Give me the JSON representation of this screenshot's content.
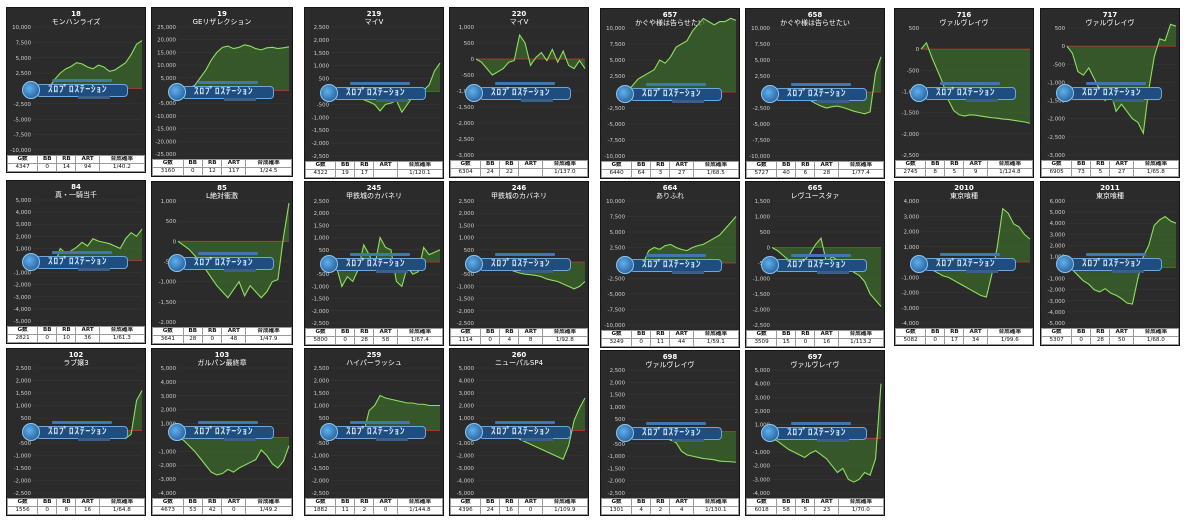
{
  "palette": {
    "panel_bg": "#2b2b2b",
    "line": "#8ee05f",
    "fill": "#3c6b2a",
    "zero_line": "#c0392b",
    "grid": "#3a3a3a",
    "text": "#ffffff"
  },
  "watermark": {
    "text": "ｽﾛﾌﾟﾛｽﾃｰｼｮﾝ",
    "icon": "logo-badge-icon"
  },
  "stat_headers": [
    "G数",
    "BB",
    "RB",
    "ART",
    "合成確率"
  ],
  "panels": [
    {
      "num": "18",
      "name": "モンハンライズ",
      "stats": [
        "4347",
        "0",
        "14",
        "94",
        "1/40.2"
      ]
    },
    {
      "num": "19",
      "name": "GEリザレクション",
      "stats": [
        "3160",
        "0",
        "12",
        "117",
        "1/24.5"
      ]
    },
    {
      "num": "219",
      "name": "マイV",
      "stats": [
        "4322",
        "19",
        "17",
        "",
        "1/120.1"
      ]
    },
    {
      "num": "220",
      "name": "マイV",
      "stats": [
        "6304",
        "24",
        "22",
        "",
        "1/137.0"
      ]
    },
    {
      "num": "657",
      "name": "かぐや様は告らせたい",
      "stats": [
        "6440",
        "64",
        "3",
        "27",
        "1/68.5"
      ]
    },
    {
      "num": "658",
      "name": "かぐや様は告らせたい",
      "stats": [
        "5727",
        "40",
        "6",
        "28",
        "1/77.4"
      ]
    },
    {
      "num": "716",
      "name": "ヴァルヴレイヴ",
      "stats": [
        "2745",
        "8",
        "5",
        "9",
        "1/124.8"
      ]
    },
    {
      "num": "717",
      "name": "ヴァルヴレイヴ",
      "stats": [
        "6905",
        "73",
        "5",
        "27",
        "1/65.8"
      ]
    },
    {
      "num": "84",
      "name": "真・一騎当千",
      "stats": [
        "2821",
        "0",
        "10",
        "36",
        "1/61.3"
      ]
    },
    {
      "num": "85",
      "name": "L絶対衝激",
      "stats": [
        "3641",
        "28",
        "0",
        "48",
        "1/47.9"
      ]
    },
    {
      "num": "245",
      "name": "甲鉄城のカバネリ",
      "stats": [
        "5800",
        "0",
        "28",
        "58",
        "1/67.4"
      ]
    },
    {
      "num": "246",
      "name": "甲鉄城のカバネリ",
      "stats": [
        "1114",
        "0",
        "4",
        "8",
        "1/92.8"
      ]
    },
    {
      "num": "664",
      "name": "ありふれ",
      "stats": [
        "3249",
        "0",
        "11",
        "44",
        "1/59.1"
      ]
    },
    {
      "num": "665",
      "name": "レヴユースタァ",
      "stats": [
        "3509",
        "15",
        "0",
        "16",
        "1/113.2"
      ]
    },
    {
      "num": "2010",
      "name": "東京喰種",
      "stats": [
        "5082",
        "0",
        "17",
        "34",
        "1/99.6"
      ]
    },
    {
      "num": "2011",
      "name": "東京喰種",
      "stats": [
        "5307",
        "0",
        "28",
        "50",
        "1/68.0"
      ]
    },
    {
      "num": "102",
      "name": "ラブ嬢3",
      "stats": [
        "1556",
        "0",
        "8",
        "16",
        "1/64.8"
      ]
    },
    {
      "num": "103",
      "name": "ガルパン最終章",
      "stats": [
        "4673",
        "53",
        "42",
        "0",
        "1/49.2"
      ]
    },
    {
      "num": "259",
      "name": "ハイパーラッシュ",
      "stats": [
        "1882",
        "11",
        "2",
        "0",
        "1/144.8"
      ]
    },
    {
      "num": "260",
      "name": "ニューパルSP4",
      "stats": [
        "4396",
        "24",
        "16",
        "0",
        "1/109.9"
      ]
    },
    {
      "num": "698",
      "name": "ヴァルヴレイヴ",
      "stats": [
        "1301",
        "4",
        "2",
        "4",
        "1/130.1"
      ]
    },
    {
      "num": "697",
      "name": "ヴァルヴレイヴ",
      "stats": [
        "6018",
        "58",
        "5",
        "23",
        "1/70.0"
      ]
    }
  ],
  "chart_data": [
    {
      "type": "area",
      "ylim": [
        -10000,
        10000
      ],
      "yticks": [
        10000,
        7500,
        5000,
        2500,
        0,
        -2500,
        -5000,
        -7500,
        -10000
      ],
      "values": [
        0,
        -300,
        -800,
        200,
        1500,
        2500,
        3200,
        3600,
        4200,
        4000,
        3500,
        3200,
        3800,
        3500,
        2800,
        3000,
        3600,
        4200,
        5500,
        7200,
        7800
      ]
    },
    {
      "type": "area",
      "ylim": [
        -25000,
        25000
      ],
      "yticks": [
        25000,
        20000,
        15000,
        10000,
        5000,
        0,
        -5000,
        -10000,
        -15000,
        -20000,
        -25000
      ],
      "values": [
        0,
        500,
        1000,
        2000,
        5000,
        8000,
        12000,
        15000,
        17000,
        17500,
        16500,
        17000,
        18000,
        17500,
        16500,
        16000,
        16800,
        17000,
        16500,
        16800,
        17200
      ]
    },
    {
      "type": "area",
      "ylim": [
        -2500,
        2500
      ],
      "yticks": [
        2500,
        2000,
        1500,
        1000,
        500,
        0,
        -500,
        -1000,
        -1500,
        -2000,
        -2500
      ],
      "values": [
        0,
        -20,
        -60,
        -120,
        -180,
        -250,
        -320,
        -400,
        -500,
        -750,
        -500,
        -450,
        -350,
        -800,
        -500,
        -200,
        -100,
        50,
        250,
        800,
        1100
      ]
    },
    {
      "type": "area",
      "ylim": [
        -3000,
        1000
      ],
      "yticks": [
        1000,
        500,
        0,
        -500,
        -1000,
        -1500,
        -2000,
        -2500,
        -3000
      ],
      "values": [
        0,
        -100,
        -300,
        -500,
        -400,
        -300,
        -100,
        -50,
        750,
        500,
        -200,
        50,
        200,
        -50,
        300,
        -100,
        250,
        -200,
        -300,
        -50,
        -300
      ]
    },
    {
      "type": "area",
      "ylim": [
        -10000,
        10000
      ],
      "yticks": [
        10000,
        7500,
        5000,
        2500,
        0,
        -2500,
        -5000,
        -7500,
        -10000
      ],
      "values": [
        0,
        1000,
        2000,
        2500,
        3000,
        3500,
        5000,
        4500,
        5500,
        7000,
        7500,
        8000,
        9500,
        10500,
        11500,
        11000,
        10500,
        11000,
        11000,
        11500,
        11200
      ]
    },
    {
      "type": "area",
      "ylim": [
        -10000,
        10000
      ],
      "yticks": [
        10000,
        7500,
        5000,
        2500,
        0,
        -2500,
        -5000,
        -7500,
        -10000
      ],
      "values": [
        0,
        -100,
        -150,
        -250,
        -400,
        -600,
        -900,
        -1300,
        -1800,
        -2200,
        -2500,
        -2300,
        -2200,
        -2400,
        -2700,
        -3000,
        -3200,
        -3400,
        -3100,
        3000,
        5500
      ]
    },
    {
      "type": "area",
      "ylim": [
        -2500,
        500
      ],
      "yticks": [
        500,
        0,
        -500,
        -1000,
        -1500,
        -2000,
        -2500
      ],
      "values": [
        0,
        150,
        -200,
        -500,
        -800,
        -1200,
        -1450,
        -1550,
        -1580,
        -1550,
        -1560,
        -1580,
        -1600,
        -1620,
        -1630,
        -1650,
        -1660,
        -1680,
        -1700,
        -1720,
        -1750
      ]
    },
    {
      "type": "area",
      "ylim": [
        -3000,
        500
      ],
      "yticks": [
        500,
        0,
        -500,
        -1000,
        -1500,
        -2000,
        -2500,
        -3000
      ],
      "values": [
        0,
        -200,
        -700,
        -800,
        -600,
        -900,
        -1200,
        -1500,
        -1250,
        -1800,
        -1600,
        -1800,
        -2000,
        -2100,
        -2400,
        -1200,
        -300,
        200,
        150,
        600,
        550
      ]
    },
    {
      "type": "area",
      "ylim": [
        -5000,
        5000
      ],
      "yticks": [
        5000,
        4000,
        3000,
        2000,
        1000,
        0,
        -1000,
        -2000,
        -3000,
        -4000,
        -5000
      ],
      "values": [
        0,
        -100,
        -200,
        -500,
        -300,
        1000,
        600,
        800,
        1100,
        1500,
        1200,
        1800,
        1600,
        1500,
        1400,
        1200,
        1000,
        1800,
        2300,
        2000,
        2600
      ]
    },
    {
      "type": "area",
      "ylim": [
        -2000,
        1000
      ],
      "yticks": [
        1000,
        500,
        0,
        -500,
        -1000,
        -1500,
        -2000
      ],
      "values": [
        0,
        -100,
        -200,
        -350,
        -500,
        -700,
        -900,
        -1100,
        -1250,
        -1400,
        -1200,
        -1000,
        -1350,
        -1100,
        -1250,
        -1400,
        -1250,
        -1000,
        -950,
        100,
        950
      ]
    },
    {
      "type": "area",
      "ylim": [
        -2500,
        2500
      ],
      "yticks": [
        2500,
        2000,
        1500,
        1000,
        500,
        0,
        -500,
        -1000,
        -1500,
        -2000,
        -2500
      ],
      "values": [
        0,
        -200,
        -1000,
        -600,
        -800,
        -300,
        700,
        300,
        -200,
        1000,
        600,
        500,
        -800,
        -1000,
        -200,
        -500,
        -400,
        600,
        300,
        400,
        500
      ]
    },
    {
      "type": "area",
      "ylim": [
        -2500,
        2500
      ],
      "yticks": [
        2500,
        2000,
        1500,
        1000,
        500,
        0,
        -500,
        -1000,
        -1500,
        -2000,
        -2500
      ],
      "values": [
        0,
        -20,
        -60,
        -120,
        -180,
        -240,
        -300,
        -380,
        -450,
        -500,
        -520,
        -550,
        -600,
        -700,
        -750,
        -800,
        -900,
        -1000,
        -1100,
        -1000,
        -800
      ]
    },
    {
      "type": "area",
      "ylim": [
        -10000,
        10000
      ],
      "yticks": [
        10000,
        7500,
        5000,
        2500,
        0,
        -2500,
        -5000,
        -7500,
        -10000
      ],
      "values": [
        0,
        -200,
        -500,
        0,
        2000,
        2500,
        2200,
        2800,
        3000,
        2500,
        2200,
        2000,
        2500,
        2800,
        3000,
        3500,
        4000,
        4500,
        5500,
        6500,
        7500
      ]
    },
    {
      "type": "area",
      "ylim": [
        -2500,
        1500
      ],
      "yticks": [
        1500,
        1000,
        500,
        0,
        -500,
        -1000,
        -1500,
        -2000,
        -2500
      ],
      "values": [
        0,
        -100,
        -250,
        -400,
        -550,
        -700,
        -400,
        -200,
        100,
        300,
        -500,
        -300,
        -400,
        -600,
        -500,
        -800,
        -900,
        -1100,
        -1500,
        -1700,
        -1900
      ]
    },
    {
      "type": "area",
      "ylim": [
        -4000,
        4000
      ],
      "yticks": [
        4000,
        3000,
        2000,
        1000,
        0,
        -1000,
        -2000,
        -3000,
        -4000
      ],
      "values": [
        0,
        -200,
        -500,
        -700,
        -900,
        -1000,
        -1200,
        -1400,
        -1600,
        -1800,
        -2000,
        -2200,
        -2300,
        -800,
        1000,
        3500,
        3200,
        2500,
        2300,
        1800,
        1500
      ]
    },
    {
      "type": "area",
      "ylim": [
        -5000,
        6000
      ],
      "yticks": [
        6000,
        5000,
        4000,
        3000,
        2000,
        1000,
        0,
        -1000,
        -2000,
        -3000,
        -4000,
        -5000
      ],
      "values": [
        0,
        -200,
        -700,
        -1200,
        -1500,
        -2000,
        -2200,
        -1900,
        -2300,
        -2500,
        -2800,
        -3200,
        -3300,
        -1000,
        1000,
        2000,
        3800,
        4300,
        4600,
        4200,
        4000
      ]
    },
    {
      "type": "area",
      "ylim": [
        -2500,
        2500
      ],
      "yticks": [
        2500,
        2000,
        1500,
        1000,
        500,
        0,
        -500,
        -1000,
        -1500,
        -2000,
        -2500
      ],
      "values": [
        0,
        -10,
        -20,
        -40,
        -60,
        -80,
        -100,
        -120,
        -140,
        -160,
        -180,
        -200,
        -220,
        -240,
        -260,
        -280,
        -300,
        -320,
        -150,
        1200,
        1600
      ]
    },
    {
      "type": "area",
      "ylim": [
        -4000,
        5000
      ],
      "yticks": [
        5000,
        4000,
        3000,
        2000,
        1000,
        0,
        -1000,
        -2000,
        -3000,
        -4000
      ],
      "values": [
        0,
        -200,
        -600,
        -1000,
        -1500,
        -2000,
        -2500,
        -2700,
        -2600,
        -2300,
        -2500,
        -2200,
        -2000,
        -1800,
        -1600,
        -900,
        -1300,
        -1900,
        -2200,
        -1700,
        -600
      ]
    },
    {
      "type": "area",
      "ylim": [
        -2500,
        2500
      ],
      "yticks": [
        2500,
        2000,
        1500,
        1000,
        500,
        0,
        -500,
        -1000,
        -1500,
        -2000,
        -2500
      ],
      "values": [
        0,
        -50,
        -100,
        -200,
        -300,
        -250,
        -100,
        800,
        1000,
        1400,
        1300,
        1250,
        1200,
        1150,
        1100,
        1100,
        1050,
        1050,
        1000,
        1000,
        1000
      ]
    },
    {
      "type": "area",
      "ylim": [
        -5000,
        5000
      ],
      "yticks": [
        5000,
        4000,
        3000,
        2000,
        1000,
        0,
        -1000,
        -2000,
        -3000,
        -4000,
        -5000
      ],
      "values": [
        0,
        -100,
        -300,
        -500,
        -600,
        -400,
        -500,
        -300,
        -700,
        -900,
        -1100,
        -1300,
        -1500,
        -1700,
        -1900,
        -2100,
        -2300,
        -1200,
        800,
        1800,
        2600
      ]
    },
    {
      "type": "area",
      "ylim": [
        -2500,
        2500
      ],
      "yticks": [
        2500,
        2000,
        1500,
        1000,
        500,
        0,
        -500,
        -1000,
        -1500,
        -2000,
        -2500
      ],
      "values": [
        0,
        -20,
        -50,
        -80,
        -120,
        -150,
        -200,
        -280,
        -350,
        -450,
        -800,
        -950,
        -1000,
        -1050,
        -1100,
        -1120,
        -1150,
        -1200,
        -1220,
        -1230,
        -1250
      ]
    },
    {
      "type": "area",
      "ylim": [
        -4000,
        5000
      ],
      "yticks": [
        5000,
        4000,
        3000,
        2000,
        1000,
        0,
        -1000,
        -2000,
        -3000,
        -4000
      ],
      "values": [
        0,
        -200,
        -500,
        -800,
        -1000,
        -1200,
        -1400,
        -1100,
        -900,
        -1200,
        -1500,
        -2000,
        -2500,
        -2200,
        -3000,
        -3200,
        -3000,
        -2500,
        -2700,
        -1500,
        4000
      ]
    }
  ]
}
